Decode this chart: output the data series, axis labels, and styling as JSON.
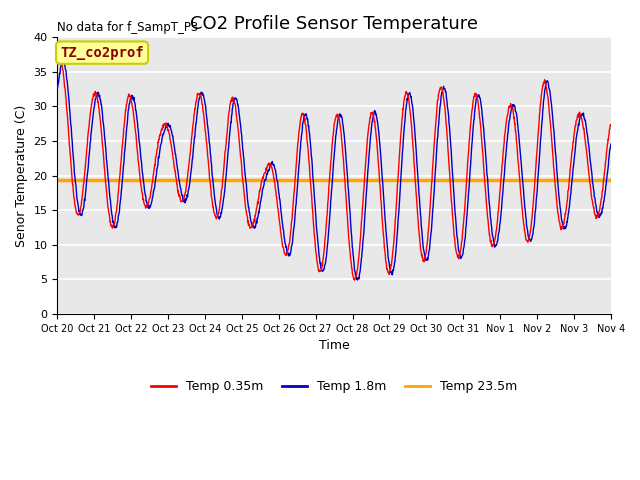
{
  "title": "CO2 Profile Sensor Temperature",
  "no_data_text": "No data for f_SampT_P3",
  "xlabel": "Time",
  "ylabel": "Senor Temperature (C)",
  "ylim": [
    0,
    40
  ],
  "yticks": [
    0,
    5,
    10,
    15,
    20,
    25,
    30,
    35,
    40
  ],
  "xtick_labels": [
    "Oct 20",
    "Oct 21",
    "Oct 22",
    "Oct 23",
    "Oct 24",
    "Oct 25",
    "Oct 26",
    "Oct 27",
    "Oct 28",
    "Oct 29",
    "Oct 30",
    "Oct 31",
    "Nov 1",
    "Nov 2",
    "Nov 3",
    "Nov 4"
  ],
  "constant_temp": 19.3,
  "constant_color": "#FFA500",
  "line1_color": "#FF0000",
  "line2_color": "#0000CD",
  "legend_entries": [
    "Temp 0.35m",
    "Temp 1.8m",
    "Temp 23.5m"
  ],
  "legend_colors": [
    "#FF0000",
    "#0000CD",
    "#FFA500"
  ],
  "box_label": "TZ_co2prof",
  "box_facecolor": "#FFFF99",
  "box_edgecolor": "#CCCC00",
  "background_color": "#E8E8E8",
  "grid_color": "#FFFFFF",
  "title_fontsize": 13,
  "axis_fontsize": 9,
  "tick_fontsize": 8,
  "daily_max": [
    37,
    32,
    32,
    27,
    32,
    32,
    21,
    29,
    29,
    29,
    32,
    33,
    32,
    30,
    34,
    29
  ],
  "daily_min": [
    16,
    13,
    12,
    18,
    15,
    13,
    12,
    6,
    6,
    4,
    7,
    8,
    8,
    11,
    10,
    14
  ],
  "peak_hour": 14,
  "lag_hours_blue": 2.0
}
